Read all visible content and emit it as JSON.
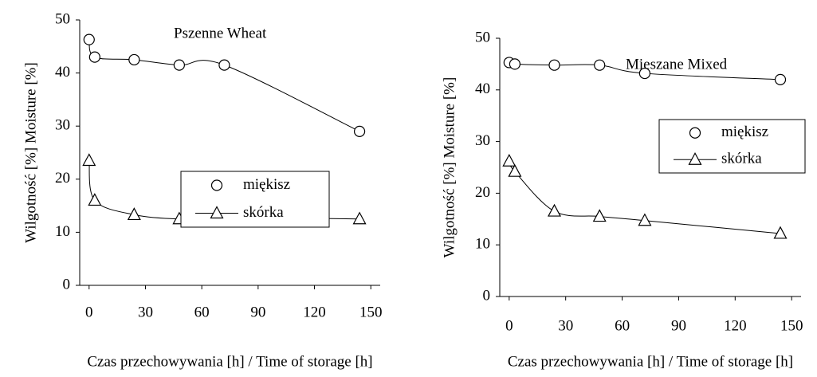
{
  "chart_data": [
    {
      "type": "line",
      "title": "Pszenne Wheat",
      "x_label": "Czas przechowywania [h] / Time of storage [h]",
      "y_label": "Wilgotność [%] Moisture [%]",
      "xlim": [
        -5,
        155
      ],
      "xticks": [
        0,
        30,
        60,
        90,
        120,
        150
      ],
      "ylim": [
        0,
        50
      ],
      "yticks": [
        0,
        10,
        20,
        30,
        40,
        50
      ],
      "legend": "center-right",
      "series": [
        {
          "name": "miękisz",
          "color": "#000000",
          "marker": "circle",
          "x": [
            0,
            3,
            24,
            48,
            72,
            144
          ],
          "values": [
            46.3,
            43,
            42.5,
            41.5,
            41.5,
            29
          ]
        },
        {
          "name": "skórka",
          "color": "#000000",
          "marker": "triangle",
          "x": [
            0,
            3,
            24,
            48,
            72,
            144
          ],
          "values": [
            23.5,
            16,
            13.3,
            12.5,
            12.8,
            12.5
          ]
        }
      ]
    },
    {
      "type": "line",
      "title": "Mieszane Mixed",
      "x_label": "Czas przechowywania [h] / Time of storage [h]",
      "y_label": "Wilgotność [%] Moisture [%]",
      "xlim": [
        -5,
        155
      ],
      "xticks": [
        0,
        30,
        60,
        90,
        120,
        150
      ],
      "ylim": [
        0,
        50
      ],
      "yticks": [
        0,
        10,
        20,
        30,
        40,
        50
      ],
      "legend": "center-right",
      "series": [
        {
          "name": "miękisz",
          "color": "#000000",
          "marker": "circle",
          "x": [
            0,
            3,
            24,
            48,
            72,
            144
          ],
          "values": [
            45.3,
            45,
            44.8,
            44.8,
            43.2,
            42
          ]
        },
        {
          "name": "skórka",
          "color": "#000000",
          "marker": "triangle",
          "x": [
            0,
            3,
            24,
            48,
            72,
            144
          ],
          "values": [
            26.2,
            24.2,
            16.5,
            15.5,
            14.7,
            12.2
          ]
        }
      ]
    }
  ]
}
